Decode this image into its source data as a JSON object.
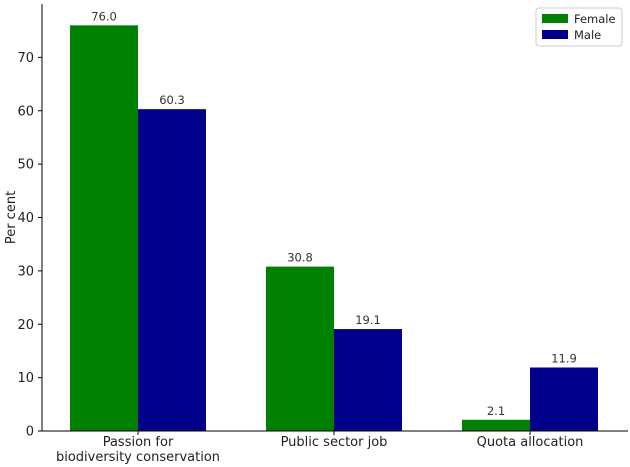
{
  "chart_data": {
    "type": "bar",
    "categories": [
      "Passion for\nbiodiversity conservation",
      "Public sector job",
      "Quota allocation"
    ],
    "series": [
      {
        "name": "Female",
        "color": "#008000",
        "values": [
          76.0,
          30.8,
          2.1
        ]
      },
      {
        "name": "Male",
        "color": "#00008B",
        "values": [
          60.3,
          19.1,
          11.9
        ]
      }
    ],
    "data_labels": [
      [
        "76.0",
        "30.8",
        "2.1"
      ],
      [
        "60.3",
        "19.1",
        "11.9"
      ]
    ],
    "title": "",
    "xlabel": "",
    "ylabel": "Per cent",
    "ylim": [
      0,
      80
    ],
    "yticks": [
      0,
      10,
      20,
      30,
      40,
      50,
      60,
      70
    ],
    "grid": false,
    "legend_position": "top-right"
  }
}
